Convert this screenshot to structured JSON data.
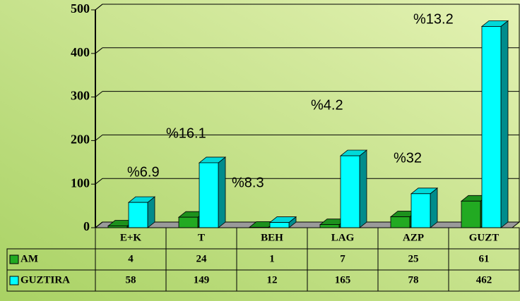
{
  "chart_data": {
    "type": "bar3d",
    "categories": [
      "E+K",
      "T",
      "BEH",
      "LAG",
      "AZP",
      "GUZT"
    ],
    "series": [
      {
        "name": "AM",
        "color": "#22aa22",
        "values": [
          4,
          24,
          1,
          7,
          25,
          61
        ]
      },
      {
        "name": "GUZTIRA",
        "color": "#00ffff",
        "values": [
          58,
          149,
          12,
          165,
          78,
          462
        ]
      }
    ],
    "annotations": [
      "%6.9",
      "%16.1",
      "%8.3",
      "%4.2",
      "%32",
      "%13.2"
    ],
    "ylim": [
      0,
      500
    ],
    "yticks": [
      0,
      100,
      200,
      300,
      400,
      500
    ],
    "grid": true
  }
}
